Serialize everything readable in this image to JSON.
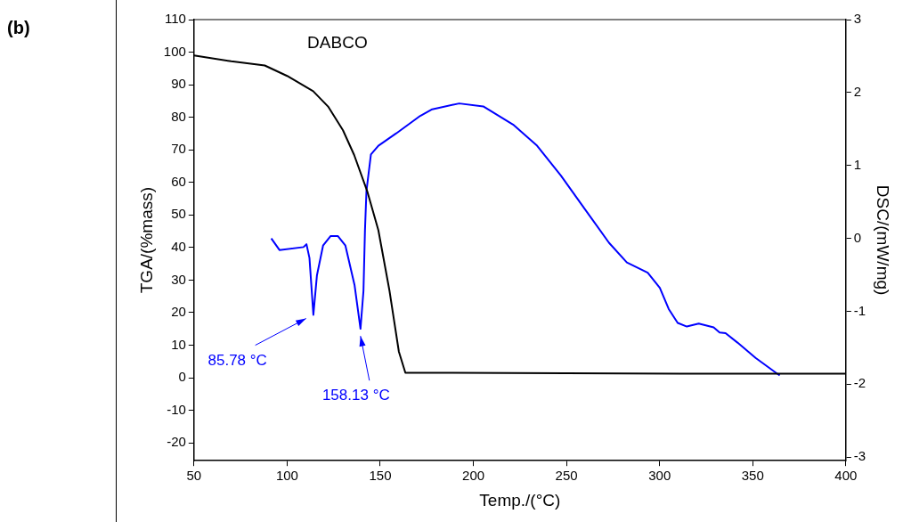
{
  "chart_data": {
    "type": "line",
    "title": "DABCO",
    "xlabel": "Temp./(°C)",
    "ylabel": "TGA/(%mass)",
    "y2label": "DSC/(mW/mg)",
    "annotations": [
      "(b)",
      {
        "text": "85.78 °C",
        "x": 114,
        "y": 19
      },
      {
        "text": "158.13 °C",
        "x": 139.4,
        "y": 15
      }
    ],
    "xlim": [
      50,
      400
    ],
    "xticks": [
      50,
      100,
      150,
      200,
      250,
      300,
      350,
      400
    ],
    "ylim": [
      -25.5,
      110
    ],
    "yticks": [
      -20,
      -10,
      0,
      10,
      20,
      30,
      40,
      50,
      60,
      70,
      80,
      90,
      100,
      110
    ],
    "y2lim": [
      -3.05,
      3
    ],
    "y2ticks": [
      -3,
      -2,
      -1,
      0,
      1,
      2,
      3
    ],
    "grid": false,
    "legend": false,
    "marker": "none",
    "line_style": "solid",
    "series": [
      {
        "color": "#000000",
        "x": [
          50,
          70,
          88,
          100,
          114,
          122,
          130,
          136,
          143,
          149,
          155,
          160,
          163.5,
          170,
          181,
          250,
          280,
          320,
          400
        ],
        "values": [
          99,
          97.2,
          95.9,
          92.7,
          88,
          83.3,
          76,
          68.4,
          57.3,
          45.3,
          26.6,
          8,
          1.5,
          1.5,
          1.5,
          1.4,
          1.3,
          1.2,
          1.2
        ]
      },
      {
        "color": "#0000ff",
        "axis": "y2",
        "x": [
          91.5,
          95.9,
          108.8,
          110.4,
          112,
          114.1,
          116,
          119.3,
          123.3,
          127.3,
          131.3,
          136.2,
          139.4,
          141,
          141.8,
          142.6,
          145,
          149,
          158.6,
          171.5,
          177.9,
          192.4,
          205.3,
          221.3,
          234.2,
          247,
          259.9,
          272.8,
          282.4,
          293.6,
          300.1,
          304.9,
          309.7,
          314.6,
          321,
          329,
          332.2,
          335.4,
          341.8,
          351.5,
          362.8,
          364.5
        ],
        "values": [
          0,
          -0.16,
          -0.12,
          -0.08,
          -0.27,
          -1.05,
          -0.51,
          -0.1,
          0.03,
          0.03,
          -0.1,
          -0.64,
          -1.24,
          -0.72,
          0.11,
          0.65,
          1.15,
          1.27,
          1.44,
          1.68,
          1.77,
          1.85,
          1.81,
          1.56,
          1.27,
          0.86,
          0.4,
          -0.06,
          -0.33,
          -0.47,
          -0.68,
          -0.97,
          -1.16,
          -1.21,
          -1.17,
          -1.22,
          -1.29,
          -1.3,
          -1.43,
          -1.64,
          -1.85,
          -1.88
        ]
      }
    ]
  }
}
